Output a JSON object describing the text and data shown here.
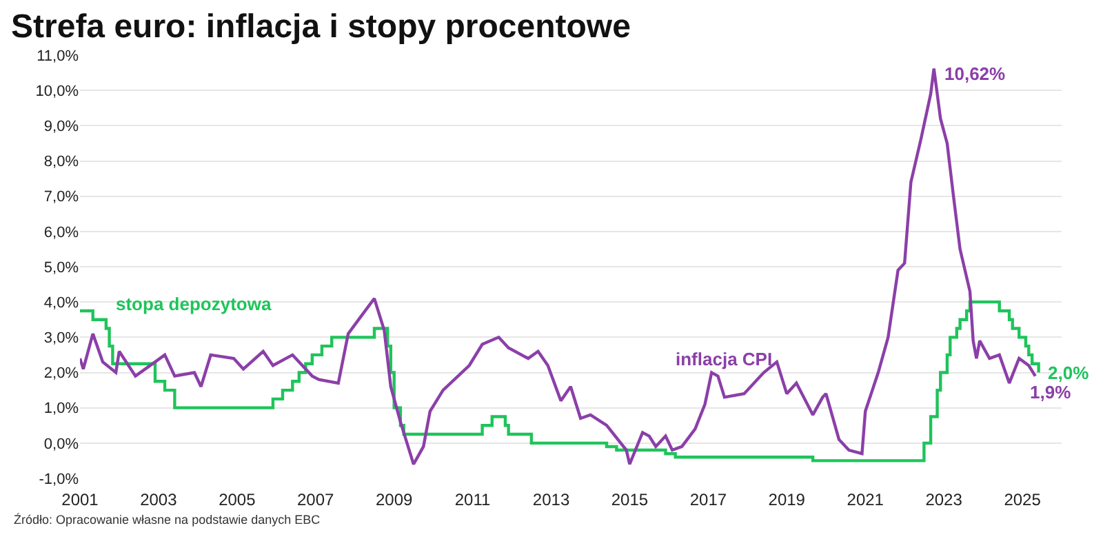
{
  "chart_data": {
    "type": "line",
    "title": "Strefa euro: inflacja i stopy procentowe",
    "xlim": [
      "2001-01-01",
      "2026-01-01"
    ],
    "xticks": [
      "2001",
      "2003",
      "2005",
      "2007",
      "2009",
      "2011",
      "2013",
      "2015",
      "2017",
      "2019",
      "2021",
      "2023",
      "2025"
    ],
    "ylim": [
      -1,
      11
    ],
    "yticks": [
      {
        "value": -1,
        "label": "-1,0%"
      },
      {
        "value": 0,
        "label": "0,0%"
      },
      {
        "value": 1,
        "label": "1,0%"
      },
      {
        "value": 2,
        "label": "2,0%"
      },
      {
        "value": 3,
        "label": "3,0%"
      },
      {
        "value": 4,
        "label": "4,0%"
      },
      {
        "value": 5,
        "label": "5,0%"
      },
      {
        "value": 6,
        "label": "6,0%"
      },
      {
        "value": 7,
        "label": "7,0%"
      },
      {
        "value": 8,
        "label": "8,0%"
      },
      {
        "value": 9,
        "label": "9,0%"
      },
      {
        "value": 10,
        "label": "10,0%"
      },
      {
        "value": 11,
        "label": "11,0%"
      }
    ],
    "grid": "y",
    "legend": false,
    "marker": "none",
    "line_style": "solid",
    "series": [
      {
        "name": "stopa depozytowa",
        "type": "step",
        "color": "#1fc45a",
        "x": [
          "2001-01",
          "2001-05",
          "2001-09",
          "2001-10",
          "2001-11",
          "2002-12",
          "2003-03",
          "2003-06",
          "2005-12",
          "2006-03",
          "2006-06",
          "2006-08",
          "2006-10",
          "2006-12",
          "2007-03",
          "2007-06",
          "2008-07",
          "2008-11",
          "2008-12",
          "2009-01",
          "2009-03",
          "2009-04",
          "2011-04",
          "2011-07",
          "2011-11",
          "2011-12",
          "2012-07",
          "2014-06",
          "2014-09",
          "2015-12",
          "2016-03",
          "2019-09",
          "2022-07",
          "2022-09",
          "2022-11",
          "2022-12",
          "2023-02",
          "2023-03",
          "2023-05",
          "2023-06",
          "2023-08",
          "2023-09",
          "2024-06",
          "2024-09",
          "2024-10",
          "2024-12",
          "2025-02",
          "2025-03",
          "2025-04",
          "2025-06"
        ],
        "values": [
          3.75,
          3.5,
          3.25,
          2.75,
          2.25,
          1.75,
          1.5,
          1.0,
          1.25,
          1.5,
          1.75,
          2.0,
          2.25,
          2.5,
          2.75,
          3.0,
          3.25,
          2.75,
          2.0,
          1.0,
          0.5,
          0.25,
          0.5,
          0.75,
          0.5,
          0.25,
          0.0,
          -0.1,
          -0.2,
          -0.3,
          -0.4,
          -0.5,
          0.0,
          0.75,
          1.5,
          2.0,
          2.5,
          3.0,
          3.25,
          3.5,
          3.75,
          4.0,
          3.75,
          3.5,
          3.25,
          3.0,
          2.75,
          2.5,
          2.25,
          2.0
        ]
      },
      {
        "name": "inflacja CPI",
        "type": "line",
        "color": "#8b3fa8",
        "x": [
          "2001-01",
          "2001-02",
          "2001-05",
          "2001-08",
          "2001-12",
          "2002-01",
          "2002-06",
          "2002-12",
          "2003-03",
          "2003-06",
          "2003-12",
          "2004-02",
          "2004-05",
          "2004-12",
          "2005-03",
          "2005-09",
          "2005-12",
          "2006-06",
          "2006-12",
          "2007-02",
          "2007-08",
          "2007-11",
          "2008-03",
          "2008-07",
          "2008-10",
          "2008-12",
          "2009-03",
          "2009-07",
          "2009-10",
          "2009-12",
          "2010-04",
          "2010-12",
          "2011-04",
          "2011-09",
          "2011-12",
          "2012-06",
          "2012-09",
          "2012-12",
          "2013-04",
          "2013-07",
          "2013-10",
          "2014-01",
          "2014-06",
          "2014-12",
          "2015-01",
          "2015-05",
          "2015-07",
          "2015-09",
          "2015-12",
          "2016-02",
          "2016-05",
          "2016-09",
          "2016-12",
          "2017-02",
          "2017-04",
          "2017-06",
          "2017-12",
          "2018-06",
          "2018-10",
          "2019-01",
          "2019-04",
          "2019-09",
          "2019-12",
          "2020-01",
          "2020-05",
          "2020-08",
          "2020-12",
          "2021-01",
          "2021-05",
          "2021-08",
          "2021-11",
          "2022-01",
          "2022-03",
          "2022-06",
          "2022-09",
          "2022-10",
          "2022-12",
          "2023-02",
          "2023-04",
          "2023-06",
          "2023-09",
          "2023-10",
          "2023-11",
          "2023-12",
          "2024-03",
          "2024-06",
          "2024-09",
          "2024-12",
          "2025-03",
          "2025-05"
        ],
        "values": [
          2.4,
          2.1,
          3.1,
          2.3,
          2.0,
          2.6,
          1.9,
          2.3,
          2.5,
          1.9,
          2.0,
          1.6,
          2.5,
          2.4,
          2.1,
          2.6,
          2.2,
          2.5,
          1.9,
          1.8,
          1.7,
          3.1,
          3.6,
          4.1,
          3.2,
          1.6,
          0.6,
          -0.6,
          -0.1,
          0.9,
          1.5,
          2.2,
          2.8,
          3.0,
          2.7,
          2.4,
          2.6,
          2.2,
          1.2,
          1.6,
          0.7,
          0.8,
          0.5,
          -0.2,
          -0.6,
          0.3,
          0.2,
          -0.1,
          0.2,
          -0.2,
          -0.1,
          0.4,
          1.1,
          2.0,
          1.9,
          1.3,
          1.4,
          2.0,
          2.3,
          1.4,
          1.7,
          0.8,
          1.3,
          1.4,
          0.1,
          -0.2,
          -0.3,
          0.9,
          2.0,
          3.0,
          4.9,
          5.1,
          7.4,
          8.6,
          9.9,
          10.62,
          9.2,
          8.5,
          7.0,
          5.5,
          4.3,
          2.9,
          2.4,
          2.9,
          2.4,
          2.5,
          1.7,
          2.4,
          2.2,
          1.9
        ],
        "value_labels": [
          null,
          null,
          null,
          null,
          null,
          null,
          null,
          null,
          null,
          null,
          null,
          null,
          null,
          null,
          null,
          null,
          null,
          null,
          null,
          null,
          null,
          null,
          null,
          null,
          null,
          null,
          null,
          null,
          null,
          null,
          null,
          null,
          null,
          null,
          null,
          null,
          null,
          null,
          null,
          null,
          null,
          null,
          null,
          null,
          null,
          null,
          null,
          null,
          null,
          null,
          null,
          null,
          null,
          null,
          null,
          null,
          null,
          null,
          null,
          null,
          null,
          null,
          null,
          null,
          null,
          null,
          null,
          null,
          null,
          null,
          null,
          null,
          null,
          null,
          null,
          "10,62%",
          null,
          null,
          null,
          null,
          null,
          null,
          null,
          null,
          null,
          null,
          null,
          null,
          null,
          "1,9%"
        ]
      }
    ],
    "annotations": [
      {
        "text": "2,0%",
        "x": "2025-06",
        "y": 2.0
      },
      "Źródło: Opracowanie własne na podstawie danych EBC"
    ]
  }
}
